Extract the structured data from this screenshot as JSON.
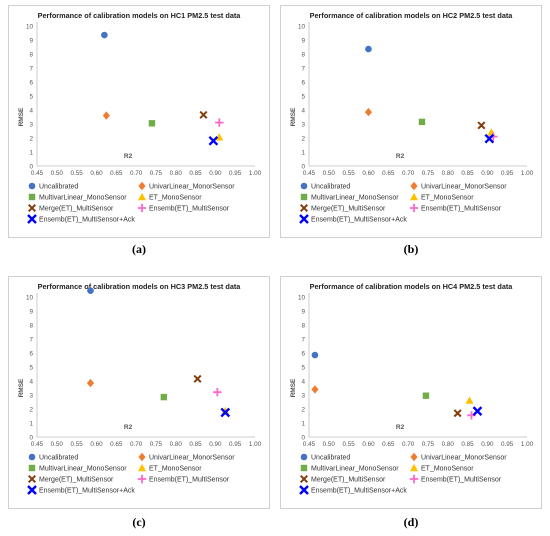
{
  "colors": {
    "Uncalibrated": "#4472C4",
    "UnivarLinear_MonorSensor": "#ED7D31",
    "MultivarLinear_MonoSensor": "#70AD47",
    "ET_MonoSensor": "#FFC000",
    "Merge(ET)_MultiSensor": "#843C0C",
    "Ensemb(ET)_MultiSensor": "#FF66CC",
    "Ensemb(ET)_MultiSensor+Ack": "#0000FF"
  },
  "chart_data": [
    {
      "type": "scatter",
      "caption": "(a)",
      "title": "Performance of calibration models on HC1 PM2.5 test data",
      "xlabel": "R2",
      "ylabel": "RMSE",
      "xlim": [
        0.45,
        1.0
      ],
      "ylim": [
        0,
        10
      ],
      "xticks": [
        "0.45",
        "0.50",
        "0.55",
        "0.60",
        "0.65",
        "0.70",
        "0.75",
        "0.80",
        "0.85",
        "0.90",
        "0.95",
        "1.00"
      ],
      "yticks": [
        "0",
        "1",
        "2",
        "3",
        "4",
        "5",
        "6",
        "7",
        "8",
        "9",
        "10"
      ],
      "grid": false,
      "legend": "bottom",
      "series": [
        {
          "name": "Uncalibrated",
          "x": [
            0.62
          ],
          "y": [
            9.35
          ]
        },
        {
          "name": "UnivarLinear_MonorSensor",
          "x": [
            0.625
          ],
          "y": [
            3.6
          ]
        },
        {
          "name": "MultivarLinear_MonoSensor",
          "x": [
            0.74
          ],
          "y": [
            3.05
          ]
        },
        {
          "name": "ET_MonoSensor",
          "x": [
            0.91
          ],
          "y": [
            2.05
          ]
        },
        {
          "name": "Merge(ET)_MultiSensor",
          "x": [
            0.87
          ],
          "y": [
            3.65
          ]
        },
        {
          "name": "Ensemb(ET)_MultiSensor",
          "x": [
            0.91
          ],
          "y": [
            3.1
          ]
        },
        {
          "name": "Ensemb(ET)_MultiSensor+Ack",
          "x": [
            0.895
          ],
          "y": [
            1.8
          ]
        }
      ]
    },
    {
      "type": "scatter",
      "caption": "(b)",
      "title": "Performance of calibration models on HC2 PM2.5 test data",
      "xlabel": "R2",
      "ylabel": "RMSE",
      "xlim": [
        0.45,
        1.0
      ],
      "ylim": [
        0,
        10
      ],
      "xticks": [
        "0.45",
        "0.50",
        "0.55",
        "0.60",
        "0.65",
        "0.70",
        "0.75",
        "0.80",
        "0.85",
        "0.90",
        "0.95",
        "1.00"
      ],
      "yticks": [
        "0",
        "1",
        "2",
        "3",
        "4",
        "5",
        "6",
        "7",
        "8",
        "9",
        "10"
      ],
      "grid": false,
      "legend": "bottom",
      "series": [
        {
          "name": "Uncalibrated",
          "x": [
            0.6
          ],
          "y": [
            8.35
          ]
        },
        {
          "name": "UnivarLinear_MonorSensor",
          "x": [
            0.6
          ],
          "y": [
            3.85
          ]
        },
        {
          "name": "MultivarLinear_MonoSensor",
          "x": [
            0.735
          ],
          "y": [
            3.15
          ]
        },
        {
          "name": "ET_MonoSensor",
          "x": [
            0.91
          ],
          "y": [
            2.4
          ]
        },
        {
          "name": "Merge(ET)_MultiSensor",
          "x": [
            0.885
          ],
          "y": [
            2.9
          ]
        },
        {
          "name": "Ensemb(ET)_MultiSensor",
          "x": [
            0.915
          ],
          "y": [
            2.1
          ]
        },
        {
          "name": "Ensemb(ET)_MultiSensor+Ack",
          "x": [
            0.905
          ],
          "y": [
            1.95
          ]
        }
      ]
    },
    {
      "type": "scatter",
      "caption": "(c)",
      "title": "Performance of calibration models on HC3 PM2.5 test data",
      "xlabel": "R2",
      "ylabel": "RMSE",
      "xlim": [
        0.45,
        1.0
      ],
      "ylim": [
        0,
        10
      ],
      "xticks": [
        "0.45",
        "0.50",
        "0.55",
        "0.60",
        "0.65",
        "0.70",
        "0.75",
        "0.80",
        "0.85",
        "0.90",
        "0.95",
        "1.00"
      ],
      "yticks": [
        "0",
        "1",
        "2",
        "3",
        "4",
        "5",
        "6",
        "7",
        "8",
        "9",
        "10"
      ],
      "grid": false,
      "legend": "bottom",
      "series": [
        {
          "name": "Uncalibrated",
          "x": [
            0.585
          ],
          "y": [
            10.45
          ]
        },
        {
          "name": "UnivarLinear_MonorSensor",
          "x": [
            0.585
          ],
          "y": [
            3.85
          ]
        },
        {
          "name": "MultivarLinear_MonoSensor",
          "x": [
            0.77
          ],
          "y": [
            2.85
          ]
        },
        {
          "name": "ET_MonoSensor",
          "x": [
            0.925
          ],
          "y": [
            1.85
          ]
        },
        {
          "name": "Merge(ET)_MultiSensor",
          "x": [
            0.855
          ],
          "y": [
            4.15
          ]
        },
        {
          "name": "Ensemb(ET)_MultiSensor",
          "x": [
            0.905
          ],
          "y": [
            3.2
          ]
        },
        {
          "name": "Ensemb(ET)_MultiSensor+Ack",
          "x": [
            0.925
          ],
          "y": [
            1.75
          ]
        }
      ]
    },
    {
      "type": "scatter",
      "caption": "(d)",
      "title": "Performance of calibration models on HC4 PM2.5 test data",
      "xlabel": "R2",
      "ylabel": "RMSE",
      "xlim": [
        0.45,
        1.0
      ],
      "ylim": [
        0,
        10
      ],
      "xticks": [
        "0.45",
        "0.50",
        "0.55",
        "0.60",
        "0.65",
        "0.70",
        "0.75",
        "0.80",
        "0.85",
        "0.90",
        "0.95",
        "1.00"
      ],
      "yticks": [
        "0",
        "1",
        "2",
        "3",
        "4",
        "5",
        "6",
        "7",
        "8",
        "9",
        "10"
      ],
      "grid": false,
      "legend": "bottom",
      "series": [
        {
          "name": "Uncalibrated",
          "x": [
            0.465
          ],
          "y": [
            5.85
          ]
        },
        {
          "name": "UnivarLinear_MonorSensor",
          "x": [
            0.465
          ],
          "y": [
            3.4
          ]
        },
        {
          "name": "MultivarLinear_MonoSensor",
          "x": [
            0.745
          ],
          "y": [
            2.95
          ]
        },
        {
          "name": "ET_MonoSensor",
          "x": [
            0.855
          ],
          "y": [
            2.6
          ]
        },
        {
          "name": "Merge(ET)_MultiSensor",
          "x": [
            0.825
          ],
          "y": [
            1.7
          ]
        },
        {
          "name": "Ensemb(ET)_MultiSensor",
          "x": [
            0.86
          ],
          "y": [
            1.55
          ]
        },
        {
          "name": "Ensemb(ET)_MultiSensor+Ack",
          "x": [
            0.875
          ],
          "y": [
            1.85
          ]
        }
      ]
    }
  ]
}
